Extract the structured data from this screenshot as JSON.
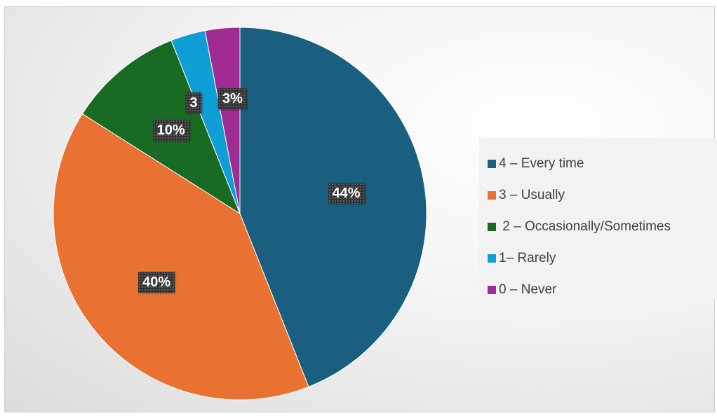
{
  "chart_data": {
    "type": "pie",
    "categories": [
      "4 – Every time",
      "3 – Usually",
      " 2 – Occasionally/Sometimes",
      "1– Rarely",
      "0 – Never"
    ],
    "values": [
      44,
      40,
      10,
      3,
      3
    ],
    "labels": [
      "44%",
      "40%",
      "10%",
      "3",
      "3%"
    ],
    "colors": [
      "#1a5f80",
      "#e97132",
      "#196b24",
      "#0f9ed5",
      "#a02b93"
    ],
    "start_angle_deg": 0,
    "direction": "clockwise",
    "legend_position": "right"
  }
}
